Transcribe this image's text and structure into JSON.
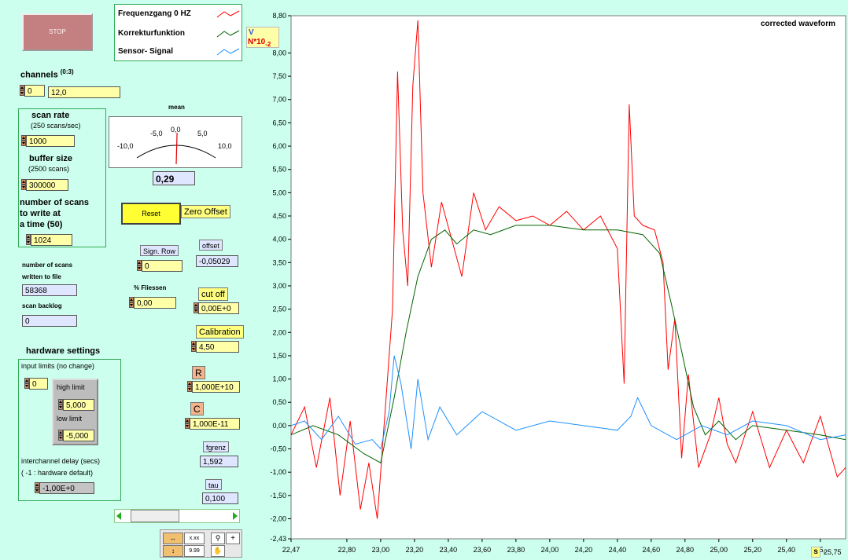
{
  "controls": {
    "stop_label": "STOP",
    "channels_label": "channels",
    "channels_range": "(0:3)",
    "channel_index": "0",
    "channel_value": "12,0",
    "scan_rate_label": "scan rate",
    "scan_rate_sub": "(250 scans/sec)",
    "scan_rate_value": "1000",
    "buffer_size_label": "buffer size",
    "buffer_size_sub": "(2500 scans)",
    "buffer_size_value": "300000",
    "scans_write_label1": "number of scans",
    "scans_write_label2": "to write at",
    "scans_write_label3": "a time (50)",
    "scans_write_value": "1024",
    "scans_written_label1": "number of scans",
    "scans_written_label2": "written to file",
    "scans_written_value": "58368",
    "scan_backlog_label": "scan backlog",
    "scan_backlog_value": "0"
  },
  "hardware": {
    "title": "hardware settings",
    "input_limits_label": "input limits (no change)",
    "input_limits_value": "0",
    "high_limit_label": "high limit",
    "high_limit_value": "5,000",
    "low_limit_label": "low  limit",
    "low_limit_value": "-5,000",
    "interchannel_label": "interchannel delay (secs)",
    "interchannel_sub": "( -1 : hardware default)",
    "interchannel_value": "-1,00E+0"
  },
  "meter": {
    "title": "mean",
    "ticks": [
      "-10,0",
      "-5,0",
      "0,0",
      "5,0",
      "10,0"
    ],
    "value": 0.29,
    "readout": "0,29",
    "range": [
      -10,
      10
    ]
  },
  "middle": {
    "reset_label": "Reset",
    "zero_offset_label": "Zero Offset",
    "sign_row_label": "Sign. Row",
    "sign_row_value": "0",
    "offset_label": "offset",
    "offset_value": "-0,05029",
    "fliessen_label": "% Fliessen",
    "fliessen_value": "0,00",
    "cutoff_label": "cut off",
    "cutoff_value": "0,00E+0",
    "calibration_label": "Calibration",
    "calibration_value": "4,50",
    "r_label": "R",
    "r_value": "1,000E+10",
    "c_label": "C",
    "c_value": "1,000E-11",
    "fgrenz_label": "fgrenz",
    "fgrenz_value": "1,592",
    "tau_label": "tau",
    "tau_value": "0,100"
  },
  "legend": {
    "items": [
      {
        "label": "Frequenzgang 0 HZ",
        "color": "#ff0000"
      },
      {
        "label": "Korrekturfunktion",
        "color": "#006400"
      },
      {
        "label": "Sensor- Signal",
        "color": "#1e90ff"
      }
    ]
  },
  "chart_data": {
    "type": "line",
    "title": "corrected waveform",
    "y_unit": "V",
    "y_scale_note": "N*10",
    "y_scale_exp": "-2",
    "x_unit": "s",
    "xlim": [
      22.47,
      25.75
    ],
    "ylim": [
      -2.43,
      8.8
    ],
    "x_ticks": [
      "22,47",
      "22,80",
      "23,00",
      "23,20",
      "23,40",
      "23,60",
      "23,80",
      "24,00",
      "24,20",
      "24,40",
      "24,60",
      "24,80",
      "25,00",
      "25,20",
      "25,40",
      "25,"
    ],
    "x_tick_values": [
      22.47,
      22.8,
      23.0,
      23.2,
      23.4,
      23.6,
      23.8,
      24.0,
      24.2,
      24.4,
      24.6,
      24.8,
      25.0,
      25.2,
      25.4,
      25.6
    ],
    "x_last_tick": "25,75",
    "y_ticks": [
      "8,80",
      "8,00",
      "7,50",
      "7,00",
      "6,50",
      "6,00",
      "5,50",
      "5,00",
      "4,50",
      "4,00",
      "3,50",
      "3,00",
      "2,50",
      "2,00",
      "1,50",
      "1,00",
      "0,50",
      "0,00",
      "-0,50",
      "-1,00",
      "-1,50",
      "-2,00",
      "-2,43"
    ],
    "y_tick_values": [
      8.8,
      8.0,
      7.5,
      7.0,
      6.5,
      6.0,
      5.5,
      5.0,
      4.5,
      4.0,
      3.5,
      3.0,
      2.5,
      2.0,
      1.5,
      1.0,
      0.5,
      0.0,
      -0.5,
      -1.0,
      -1.5,
      -2.0,
      -2.43
    ],
    "series": [
      {
        "name": "Frequenzgang 0 HZ",
        "color": "#ff0000",
        "x": [
          22.47,
          22.55,
          22.62,
          22.7,
          22.76,
          22.82,
          22.88,
          22.93,
          22.98,
          23.03,
          23.07,
          23.1,
          23.13,
          23.16,
          23.19,
          23.22,
          23.25,
          23.3,
          23.36,
          23.42,
          23.48,
          23.55,
          23.62,
          23.7,
          23.8,
          23.9,
          24.0,
          24.1,
          24.2,
          24.3,
          24.4,
          24.44,
          24.47,
          24.5,
          24.55,
          24.62,
          24.67,
          24.7,
          24.74,
          24.78,
          24.82,
          24.88,
          24.95,
          25.0,
          25.05,
          25.1,
          25.2,
          25.3,
          25.4,
          25.5,
          25.6,
          25.7,
          25.75
        ],
        "y": [
          -0.2,
          0.4,
          -0.9,
          0.6,
          -1.5,
          0.1,
          -1.8,
          -0.8,
          -2.0,
          0.5,
          2.5,
          7.6,
          4.2,
          3.0,
          7.3,
          8.7,
          5.0,
          3.4,
          4.8,
          4.0,
          3.2,
          5.0,
          4.2,
          4.7,
          4.4,
          4.5,
          4.3,
          4.6,
          4.2,
          4.5,
          3.8,
          0.9,
          6.9,
          4.5,
          4.3,
          4.2,
          3.5,
          1.2,
          2.3,
          -0.7,
          1.1,
          -0.9,
          -0.2,
          0.6,
          -0.4,
          -0.8,
          0.3,
          -0.9,
          -0.1,
          -0.8,
          0.2,
          -1.1,
          -0.9
        ]
      },
      {
        "name": "Korrekturfunktion",
        "color": "#006400",
        "x": [
          22.47,
          22.6,
          22.75,
          22.9,
          23.0,
          23.08,
          23.15,
          23.22,
          23.3,
          23.38,
          23.45,
          23.55,
          23.65,
          23.8,
          24.0,
          24.2,
          24.4,
          24.55,
          24.65,
          24.72,
          24.78,
          24.85,
          24.92,
          25.0,
          25.1,
          25.2,
          25.4,
          25.6,
          25.75
        ],
        "y": [
          -0.2,
          0.0,
          -0.2,
          -0.6,
          -0.8,
          0.6,
          2.0,
          3.2,
          4.0,
          4.2,
          3.9,
          4.2,
          4.1,
          4.3,
          4.3,
          4.2,
          4.2,
          4.1,
          3.7,
          2.6,
          1.6,
          0.4,
          -0.2,
          0.1,
          -0.3,
          0.0,
          -0.1,
          -0.2,
          -0.3
        ]
      },
      {
        "name": "Sensor- Signal",
        "color": "#1e90ff",
        "x": [
          22.47,
          22.55,
          22.65,
          22.75,
          22.85,
          22.95,
          23.0,
          23.05,
          23.08,
          23.12,
          23.18,
          23.22,
          23.28,
          23.35,
          23.45,
          23.6,
          23.8,
          24.0,
          24.2,
          24.4,
          24.48,
          24.52,
          24.6,
          24.75,
          24.9,
          25.05,
          25.2,
          25.4,
          25.6,
          25.75
        ],
        "y": [
          0.0,
          0.1,
          -0.3,
          0.2,
          -0.4,
          -0.3,
          -0.5,
          0.3,
          1.5,
          0.9,
          -0.5,
          1.0,
          -0.3,
          0.4,
          -0.2,
          0.3,
          -0.1,
          0.1,
          0.0,
          -0.1,
          0.2,
          0.6,
          0.0,
          -0.3,
          0.0,
          -0.2,
          0.1,
          0.0,
          -0.3,
          -0.2
        ]
      }
    ]
  }
}
